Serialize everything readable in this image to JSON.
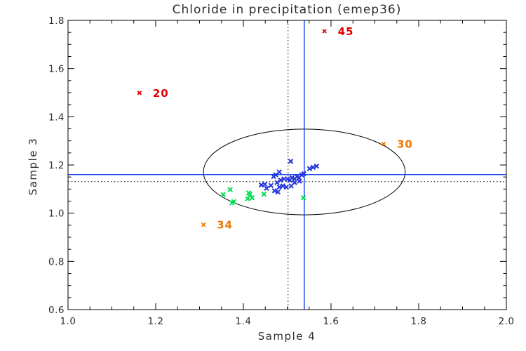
{
  "chart_data": {
    "type": "scatter",
    "title": "Chloride in precipitation (emep36)",
    "xlabel": "Sample 4",
    "ylabel": "Sample 3",
    "xlim": [
      1.0,
      2.0
    ],
    "ylim": [
      0.6,
      1.8
    ],
    "x_major_ticks": [
      1.0,
      1.2,
      1.4,
      1.6,
      1.8,
      2.0
    ],
    "x_tick_labels": [
      "1.0",
      "1.2",
      "1.4",
      "1.6",
      "1.8",
      "2.0"
    ],
    "y_major_ticks": [
      0.6,
      0.8,
      1.0,
      1.2,
      1.4,
      1.6,
      1.8
    ],
    "y_tick_labels": [
      "0.6",
      "0.8",
      "1.0",
      "1.2",
      "1.4",
      "1.6",
      "1.8"
    ],
    "minor_tick_step": 0.05,
    "grid": false,
    "legend": "none",
    "colors": {
      "blue_markers": "#2233dd",
      "green_markers": "#00dd50",
      "red_outliers": "#e00000",
      "orange_outliers": "#ee7700",
      "crosshair_blue": "#0033ee",
      "crosshair_dotted": "#000000",
      "ellipse": "#000000",
      "axis": "#000000"
    },
    "series": [
      {
        "name": "main-cluster-blue",
        "color": "#2233dd",
        "marker": "x",
        "points": [
          [
            1.508,
            1.215
          ],
          [
            1.551,
            1.185
          ],
          [
            1.559,
            1.19
          ],
          [
            1.567,
            1.195
          ],
          [
            1.474,
            1.159
          ],
          [
            1.482,
            1.171
          ],
          [
            1.469,
            1.152
          ],
          [
            1.533,
            1.159
          ],
          [
            1.538,
            1.164
          ],
          [
            1.441,
            1.117
          ],
          [
            1.449,
            1.12
          ],
          [
            1.453,
            1.103
          ],
          [
            1.463,
            1.115
          ],
          [
            1.471,
            1.093
          ],
          [
            1.479,
            1.088
          ],
          [
            1.482,
            1.108
          ],
          [
            1.49,
            1.113
          ],
          [
            1.498,
            1.108
          ],
          [
            1.477,
            1.127
          ],
          [
            1.485,
            1.137
          ],
          [
            1.493,
            1.142
          ],
          [
            1.501,
            1.142
          ],
          [
            1.506,
            1.137
          ],
          [
            1.511,
            1.147
          ],
          [
            1.517,
            1.142
          ],
          [
            1.522,
            1.152
          ],
          [
            1.527,
            1.147
          ],
          [
            1.509,
            1.113
          ],
          [
            1.517,
            1.127
          ],
          [
            1.528,
            1.133
          ]
        ]
      },
      {
        "name": "secondary-cluster-green",
        "color": "#00dd50",
        "marker": "x",
        "points": [
          [
            1.354,
            1.077
          ],
          [
            1.37,
            1.098
          ],
          [
            1.378,
            1.048
          ],
          [
            1.374,
            1.043
          ],
          [
            1.41,
            1.06
          ],
          [
            1.412,
            1.084
          ],
          [
            1.415,
            1.079
          ],
          [
            1.42,
            1.064
          ],
          [
            1.447,
            1.079
          ],
          [
            1.537,
            1.064
          ]
        ]
      },
      {
        "name": "outliers-red",
        "color": "#e00000",
        "marker": "x",
        "labeled": true,
        "points": [
          {
            "label": "45",
            "x": 1.585,
            "y": 1.755
          },
          {
            "label": "20",
            "x": 1.163,
            "y": 1.499
          }
        ]
      },
      {
        "name": "outliers-orange",
        "color": "#ee7700",
        "marker": "x",
        "labeled": true,
        "points": [
          {
            "label": "30",
            "x": 1.72,
            "y": 1.287
          },
          {
            "label": "34",
            "x": 1.309,
            "y": 0.952
          }
        ]
      }
    ],
    "reference_lines": [
      {
        "name": "mean-crosshair",
        "style": "solid",
        "color": "#0033ee",
        "x": 1.539,
        "y": 1.16
      },
      {
        "name": "median-crosshair",
        "style": "dotted",
        "color": "#000000",
        "x": 1.502,
        "y": 1.131
      }
    ],
    "ellipse": {
      "cx": 1.539,
      "cy": 1.171,
      "rx": 0.23,
      "ry": 0.178,
      "color": "#000000"
    }
  }
}
